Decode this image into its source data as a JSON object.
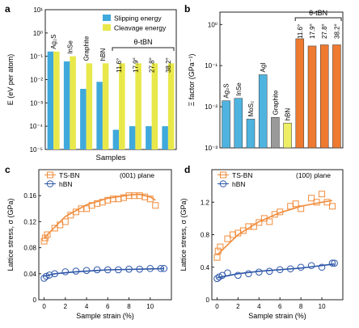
{
  "chart_data": [
    {
      "id": "a",
      "panel_label": "a",
      "type": "bar",
      "ylabel": "E (eV per atom)",
      "xlabel": "Samples",
      "yscale": "log",
      "ylim": [
        1e-05,
        10
      ],
      "yticks": [
        "10⁻⁵",
        "10⁻⁴",
        "10⁻³",
        "10⁻²",
        "10⁻¹",
        "10⁰",
        "10¹"
      ],
      "legend_position": "top-right",
      "group_bracket_label": "θ-tBN",
      "categories": [
        "Ag₂S",
        "InSe",
        "Graphite",
        "hBN",
        "11.6°",
        "17.9°",
        "27.8°",
        "38.2°"
      ],
      "series": [
        {
          "name": "Slipping energy",
          "color": "#3fa9dc",
          "values": [
            0.16,
            0.06,
            0.004,
            0.008,
            7e-05,
            0.0001,
            0.0001,
            0.0001
          ]
        },
        {
          "name": "Cleavage energy",
          "color": "#e8e84a",
          "values": [
            0.16,
            0.1,
            0.05,
            0.05,
            0.05,
            0.05,
            0.05,
            0.05
          ]
        }
      ]
    },
    {
      "id": "b",
      "panel_label": "b",
      "type": "bar",
      "ylabel": "Ξ factor (GPa⁻¹)",
      "yscale": "log",
      "ylim": [
        0.001,
        2
      ],
      "yticks": [
        "10⁻³",
        "10⁻²",
        "10⁻¹",
        "10⁰"
      ],
      "group_bracket_label": "θ-tBN",
      "categories": [
        "Ag₂S",
        "InSe",
        "MoS₂",
        "AgI",
        "Graphite",
        "hBN",
        "11.6°",
        "17.9°",
        "27.8°",
        "38.2°"
      ],
      "colors": [
        "#4fb3e0",
        "#4fb3e0",
        "#4fb3e0",
        "#4fb3e0",
        "#9a9a9a",
        "#eeee66",
        "#ee7a30",
        "#ee7a30",
        "#ee7a30",
        "#ee7a30"
      ],
      "values": [
        0.014,
        0.016,
        0.005,
        0.06,
        0.0055,
        0.004,
        0.45,
        0.3,
        0.32,
        0.32
      ]
    },
    {
      "id": "c",
      "panel_label": "c",
      "type": "scatter",
      "annotation": "(001) plane",
      "xlabel": "Sample strain (%)",
      "ylabel": "Lattice stress, σ (GPa)",
      "xlim": [
        -0.5,
        12
      ],
      "ylim": [
        0,
        0.2
      ],
      "xticks": [
        0,
        2,
        4,
        6,
        8,
        10
      ],
      "yticks": [
        0,
        0.04,
        0.08,
        0.12,
        0.16
      ],
      "series": [
        {
          "name": "TS-BN",
          "color": "#f08c3c",
          "marker": "square",
          "x": [
            0,
            0.1,
            0.3,
            1,
            1.5,
            2,
            2.5,
            3,
            3.5,
            4,
            4.5,
            5,
            5.5,
            6,
            6.5,
            7,
            7.5,
            8,
            8.5,
            9,
            9.5,
            10,
            10.5
          ],
          "y": [
            0.09,
            0.095,
            0.1,
            0.11,
            0.115,
            0.12,
            0.13,
            0.135,
            0.14,
            0.14,
            0.145,
            0.148,
            0.15,
            0.153,
            0.155,
            0.155,
            0.157,
            0.16,
            0.16,
            0.16,
            0.158,
            0.155,
            0.145
          ],
          "fit": [
            [
              0,
              0.095
            ],
            [
              2,
              0.128
            ],
            [
              4,
              0.146
            ],
            [
              6,
              0.156
            ],
            [
              8,
              0.161
            ],
            [
              9,
              0.162
            ],
            [
              10,
              0.158
            ],
            [
              10.5,
              0.153
            ]
          ]
        },
        {
          "name": "hBN",
          "color": "#2d56a8",
          "marker": "circle",
          "x": [
            0,
            0.2,
            0.5,
            1,
            2,
            3,
            4,
            5,
            6,
            7,
            8,
            9,
            10,
            11,
            11.3
          ],
          "y": [
            0.033,
            0.036,
            0.038,
            0.04,
            0.043,
            0.044,
            0.045,
            0.046,
            0.046,
            0.046,
            0.047,
            0.047,
            0.048,
            0.048,
            0.048
          ],
          "fit": [
            [
              0,
              0.036
            ],
            [
              1,
              0.04
            ],
            [
              3,
              0.043
            ],
            [
              6,
              0.046
            ],
            [
              9,
              0.047
            ],
            [
              11.3,
              0.048
            ]
          ]
        }
      ]
    },
    {
      "id": "d",
      "panel_label": "d",
      "type": "scatter",
      "annotation": "(100) plane",
      "xlabel": "Sample strain (%)",
      "ylabel": "Lattice stress, σ (GPa)",
      "xlim": [
        -0.5,
        12
      ],
      "ylim": [
        0,
        1.6
      ],
      "xticks": [
        0,
        2,
        4,
        6,
        8,
        10
      ],
      "yticks": [
        0,
        0.4,
        0.8,
        1.2
      ],
      "series": [
        {
          "name": "TS-BN",
          "color": "#f08c3c",
          "marker": "square",
          "x": [
            0,
            0.1,
            0.3,
            1,
            1.5,
            2,
            2.5,
            3,
            3.5,
            4,
            4.5,
            5,
            5.5,
            6,
            7,
            7.5,
            8,
            9,
            9.5,
            10,
            10.5,
            11
          ],
          "y": [
            0.52,
            0.6,
            0.65,
            0.75,
            0.8,
            0.82,
            0.85,
            0.9,
            0.9,
            0.95,
            1.0,
            0.96,
            1.05,
            1.08,
            1.15,
            1.18,
            1.12,
            1.25,
            1.2,
            1.3,
            1.2,
            1.15
          ],
          "fit": [
            [
              0,
              0.55
            ],
            [
              2,
              0.8
            ],
            [
              4,
              0.96
            ],
            [
              6,
              1.07
            ],
            [
              8,
              1.15
            ],
            [
              10,
              1.2
            ],
            [
              11,
              1.22
            ]
          ]
        },
        {
          "name": "hBN",
          "color": "#2d56a8",
          "marker": "circle",
          "x": [
            0,
            0.2,
            0.5,
            1,
            2,
            3,
            4,
            5,
            6,
            7,
            8,
            9,
            10,
            11,
            11.2
          ],
          "y": [
            0.26,
            0.28,
            0.3,
            0.33,
            0.3,
            0.32,
            0.34,
            0.35,
            0.37,
            0.38,
            0.4,
            0.42,
            0.4,
            0.45,
            0.45
          ],
          "fit": [
            [
              0,
              0.27
            ],
            [
              2,
              0.32
            ],
            [
              4,
              0.35
            ],
            [
              6,
              0.37
            ],
            [
              8,
              0.39
            ],
            [
              10,
              0.42
            ],
            [
              11.2,
              0.44
            ]
          ]
        }
      ]
    }
  ]
}
